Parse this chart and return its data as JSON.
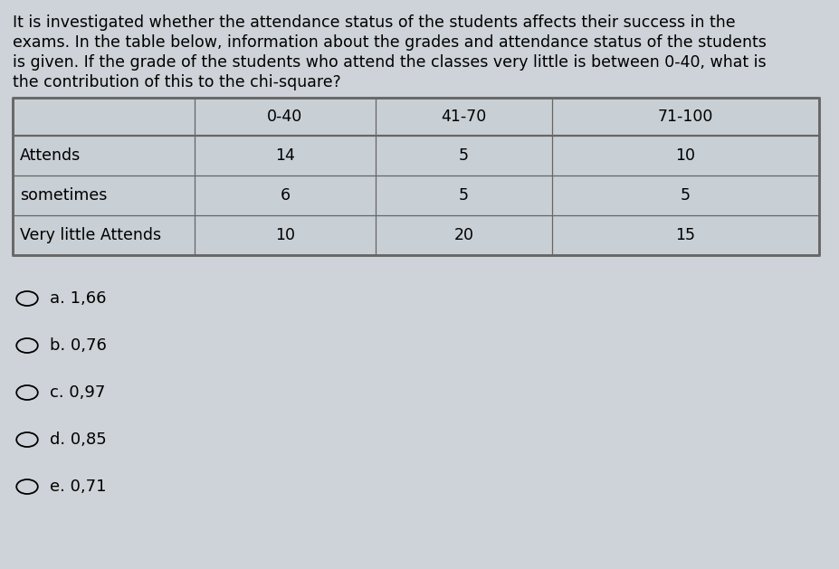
{
  "question_text_lines": [
    "It is investigated whether the attendance status of the students affects their success in the",
    "exams. In the table below, information about the grades and attendance status of the students",
    "is given. If the grade of the students who attend the classes very little is between 0-40, what is",
    "the contribution of this to the chi-square?"
  ],
  "table_headers": [
    "",
    "0-40",
    "41-70",
    "71-100"
  ],
  "table_rows": [
    [
      "Attends",
      "14",
      "5",
      "10"
    ],
    [
      "sometimes",
      "6",
      "5",
      "5"
    ],
    [
      "Very little Attends",
      "10",
      "20",
      "15"
    ]
  ],
  "option_labels": [
    "a. 1,66",
    "b. 0,76",
    "c. 0,97",
    "d. 0,85",
    "e. 0,71"
  ],
  "bg_color": "#cdd3d8",
  "table_bg": "#cdd3d8",
  "table_border_color": "#666666",
  "text_color": "#000000",
  "question_fontsize": 12.5,
  "table_fontsize": 12.5,
  "option_fontsize": 13.0
}
